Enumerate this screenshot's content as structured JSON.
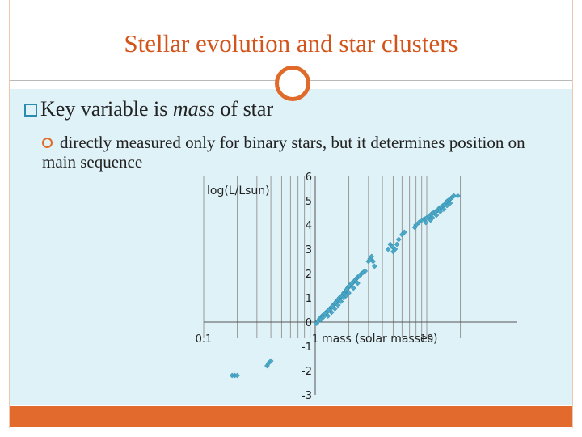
{
  "slide": {
    "title": "Stellar evolution and star clusters",
    "bullet_main_prefix": "Key variable is ",
    "bullet_main_emph": "mass",
    "bullet_main_suffix": " of star",
    "bullet_sub": "directly measured only for binary stars, but it determines position on main sequence"
  },
  "colors": {
    "accent": "#e06a2a",
    "content_bg": "#dff2f7",
    "footer": "#e26a2c",
    "points": "#4aa8c8"
  },
  "chart_data": {
    "type": "scatter",
    "ylabel": "log(L/Lsun)",
    "xlabel": "mass (solar masses)",
    "xscale": "log",
    "xlim": [
      0.1,
      20
    ],
    "ylim": [
      -3,
      6
    ],
    "x_tick_labels": [
      "0.1",
      "1",
      "10"
    ],
    "y_tick_labels": [
      "6",
      "5",
      "4",
      "3",
      "2",
      "1",
      "0",
      "-1",
      "-2",
      "-3"
    ],
    "grid": "vertical",
    "points": [
      [
        0.18,
        -2.2
      ],
      [
        0.19,
        -2.2
      ],
      [
        0.2,
        -2.2
      ],
      [
        0.37,
        -1.8
      ],
      [
        0.38,
        -1.7
      ],
      [
        0.4,
        -1.6
      ],
      [
        1.03,
        -0.05
      ],
      [
        1.06,
        0.05
      ],
      [
        1.1,
        0.15
      ],
      [
        1.15,
        0.25
      ],
      [
        1.2,
        0.3
      ],
      [
        1.12,
        0.1
      ],
      [
        1.18,
        0.2
      ],
      [
        1.25,
        0.4
      ],
      [
        1.3,
        0.45
      ],
      [
        1.35,
        0.55
      ],
      [
        1.4,
        0.6
      ],
      [
        1.45,
        0.7
      ],
      [
        1.5,
        0.75
      ],
      [
        1.55,
        0.85
      ],
      [
        1.6,
        0.9
      ],
      [
        1.65,
        1.0
      ],
      [
        1.7,
        1.05
      ],
      [
        1.75,
        1.1
      ],
      [
        1.8,
        1.2
      ],
      [
        1.85,
        1.25
      ],
      [
        1.9,
        1.3
      ],
      [
        1.95,
        1.4
      ],
      [
        2.0,
        1.45
      ],
      [
        2.05,
        1.5
      ],
      [
        2.1,
        1.55
      ],
      [
        2.15,
        1.6
      ],
      [
        2.2,
        1.65
      ],
      [
        2.25,
        1.7
      ],
      [
        2.3,
        1.75
      ],
      [
        2.35,
        1.8
      ],
      [
        2.4,
        1.85
      ],
      [
        2.5,
        1.9
      ],
      [
        2.6,
        2.0
      ],
      [
        2.7,
        2.05
      ],
      [
        2.8,
        2.1
      ],
      [
        1.22,
        0.35
      ],
      [
        1.32,
        0.5
      ],
      [
        1.42,
        0.65
      ],
      [
        1.52,
        0.8
      ],
      [
        1.62,
        0.95
      ],
      [
        1.72,
        1.05
      ],
      [
        1.82,
        1.15
      ],
      [
        1.92,
        1.35
      ],
      [
        2.02,
        1.5
      ],
      [
        2.12,
        1.6
      ],
      [
        1.3,
        0.25
      ],
      [
        1.4,
        0.4
      ],
      [
        1.5,
        0.55
      ],
      [
        1.6,
        0.7
      ],
      [
        1.7,
        0.85
      ],
      [
        1.8,
        1.0
      ],
      [
        1.9,
        1.1
      ],
      [
        2.0,
        1.2
      ],
      [
        2.2,
        1.4
      ],
      [
        2.4,
        1.6
      ],
      [
        3.0,
        2.5
      ],
      [
        3.1,
        2.6
      ],
      [
        3.2,
        2.7
      ],
      [
        3.3,
        2.5
      ],
      [
        3.4,
        2.3
      ],
      [
        4.5,
        3.0
      ],
      [
        4.7,
        3.2
      ],
      [
        4.9,
        3.1
      ],
      [
        5.0,
        2.9
      ],
      [
        5.2,
        3.0
      ],
      [
        5.4,
        3.2
      ],
      [
        5.6,
        3.4
      ],
      [
        6.0,
        3.6
      ],
      [
        6.3,
        3.7
      ],
      [
        8.0,
        4.0
      ],
      [
        8.5,
        4.1
      ],
      [
        9.0,
        4.2
      ],
      [
        9.5,
        4.25
      ],
      [
        10.0,
        4.3
      ],
      [
        10.5,
        4.35
      ],
      [
        11.0,
        4.45
      ],
      [
        11.5,
        4.5
      ],
      [
        12.0,
        4.55
      ],
      [
        12.5,
        4.6
      ],
      [
        13.0,
        4.7
      ],
      [
        13.5,
        4.75
      ],
      [
        14.0,
        4.8
      ],
      [
        14.5,
        4.85
      ],
      [
        15.0,
        4.95
      ],
      [
        15.5,
        5.0
      ],
      [
        16.0,
        5.05
      ],
      [
        16.5,
        5.1
      ],
      [
        17.0,
        5.15
      ],
      [
        17.5,
        5.2
      ],
      [
        19.0,
        5.2
      ],
      [
        11.2,
        4.3
      ],
      [
        12.2,
        4.4
      ],
      [
        13.2,
        4.55
      ],
      [
        14.2,
        4.65
      ],
      [
        15.2,
        4.8
      ],
      [
        16.2,
        4.9
      ],
      [
        9.8,
        4.1
      ],
      [
        10.8,
        4.2
      ],
      [
        7.8,
        3.9
      ]
    ]
  }
}
